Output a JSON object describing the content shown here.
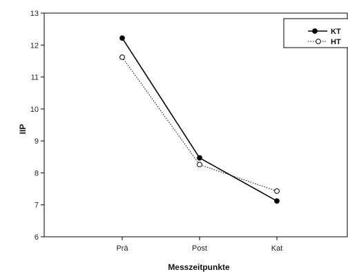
{
  "chart_data": {
    "type": "line",
    "title": "",
    "xlabel": "Messzeitpunkte",
    "ylabel": "IIP",
    "categories": [
      "Prä",
      "Post",
      "Kat"
    ],
    "ylim": [
      6,
      13
    ],
    "yticks": [
      "6",
      "7",
      "8",
      "9",
      "10",
      "11",
      "12",
      "13"
    ],
    "grid": false,
    "legend": {
      "placement": "top-right",
      "entries": [
        "KT",
        "HT"
      ]
    },
    "series": [
      {
        "name": "KT",
        "values": [
          12.22,
          8.47,
          7.12
        ],
        "line_style": "solid",
        "marker": "filled-circle",
        "color": "#000000"
      },
      {
        "name": "HT",
        "values": [
          11.62,
          8.26,
          7.43
        ],
        "line_style": "dotted",
        "marker": "open-circle",
        "color": "#000000"
      }
    ]
  }
}
